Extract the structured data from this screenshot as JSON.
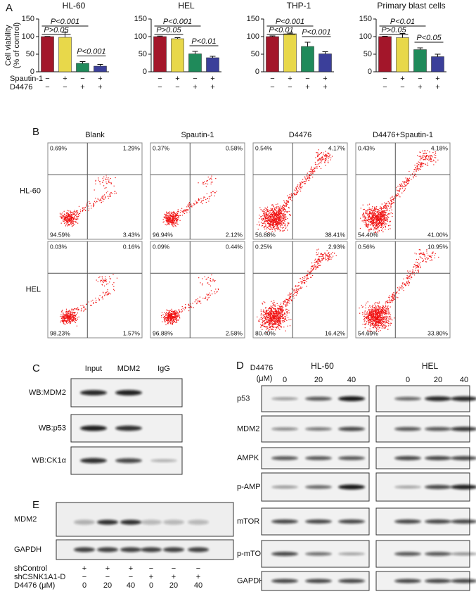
{
  "panel_labels": [
    "A",
    "B",
    "C",
    "D",
    "E"
  ],
  "chart_data": [
    {
      "type": "bar",
      "title": "HL-60",
      "y_label": [
        "Cell viability",
        "(% of control)"
      ],
      "values": [
        100,
        98,
        24,
        16
      ],
      "errors": [
        0.5,
        14,
        5,
        5
      ],
      "colors": [
        "#a3162a",
        "#e8d84a",
        "#1f8a5a",
        "#3b3f9a"
      ],
      "ylim": [
        0,
        150
      ],
      "yticks": [
        0,
        50,
        100,
        150
      ],
      "annotations": [
        "P<0.001",
        "P>0.05",
        "P<0.001"
      ]
    },
    {
      "type": "bar",
      "title": "HEL",
      "values": [
        100,
        94,
        51,
        40
      ],
      "errors": [
        1.5,
        3,
        7,
        4
      ],
      "colors": [
        "#a3162a",
        "#e8d84a",
        "#1f8a5a",
        "#3b3f9a"
      ],
      "ylim": [
        0,
        150
      ],
      "yticks": [
        0,
        50,
        100,
        150
      ],
      "annotations": [
        "P<0.001",
        "P>0.05",
        "P<0.01"
      ]
    },
    {
      "type": "bar",
      "title": "THP-1",
      "values": [
        100,
        108,
        72,
        51
      ],
      "errors": [
        2,
        2,
        12,
        6
      ],
      "colors": [
        "#a3162a",
        "#e8d84a",
        "#1f8a5a",
        "#3b3f9a"
      ],
      "ylim": [
        0,
        150
      ],
      "yticks": [
        0,
        50,
        100,
        150
      ],
      "annotations": [
        "P<0.001",
        "P<0.01",
        "P<0.001"
      ]
    },
    {
      "type": "bar",
      "title": "Primary blast cells",
      "values": [
        100,
        97,
        63,
        43
      ],
      "errors": [
        1,
        12,
        5,
        7
      ],
      "colors": [
        "#a3162a",
        "#e8d84a",
        "#1f8a5a",
        "#3b3f9a"
      ],
      "ylim": [
        0,
        150
      ],
      "yticks": [
        0,
        50,
        100,
        150
      ],
      "annotations": [
        "P<0.01",
        "P>0.05",
        "P<0.05"
      ]
    }
  ],
  "treatments": {
    "labels": [
      "Spautin-1",
      "D4476"
    ],
    "signs": [
      [
        "−",
        "+",
        "−",
        "+"
      ],
      [
        "−",
        "−",
        "+",
        "+"
      ]
    ]
  },
  "flow": {
    "columns": [
      "Blank",
      "Spautin-1",
      "D4476",
      "D4476+Spautin-1"
    ],
    "rows": [
      "HL-60",
      "HEL"
    ],
    "quadrants": [
      [
        [
          "0.69%",
          "1.29%",
          "94.59%",
          "3.43%"
        ],
        [
          "0.37%",
          "0.58%",
          "96.94%",
          "2.12%"
        ],
        [
          "0.54%",
          "4.17%",
          "56.88%",
          "38.41%"
        ],
        [
          "0.43%",
          "4.18%",
          "54.40%",
          "41.00%"
        ]
      ],
      [
        [
          "0.03%",
          "0.16%",
          "98.23%",
          "1.57%"
        ],
        [
          "0.09%",
          "0.44%",
          "96.88%",
          "2.58%"
        ],
        [
          "0.25%",
          "2.93%",
          "80.40%",
          "16.42%"
        ],
        [
          "0.56%",
          "10.95%",
          "54.69%",
          "33.80%"
        ]
      ]
    ]
  },
  "coip": {
    "columns": [
      "Input",
      "MDM2",
      "IgG"
    ],
    "rows": [
      "WB:MDM2",
      "WB:p53",
      "WB:CK1α"
    ]
  },
  "blot_d": {
    "treatment_label": [
      "D4476",
      "(μM)"
    ],
    "groups": [
      "HL-60",
      "HEL"
    ],
    "doses": [
      "0",
      "20",
      "40"
    ],
    "rows": [
      "p53",
      "MDM2",
      "AMPK",
      "p-AMPK",
      "mTOR",
      "p-mTOR",
      "GAPDH"
    ]
  },
  "blot_e": {
    "rows": [
      "MDM2",
      "GAPDH"
    ],
    "conditions": [
      {
        "label": "shControl",
        "values": [
          "+",
          "+",
          "+",
          "−",
          "−",
          "−"
        ]
      },
      {
        "label": "shCSNK1A1-D",
        "values": [
          "−",
          "−",
          "−",
          "+",
          "+",
          "+"
        ]
      },
      {
        "label": "D4476 (μM)",
        "values": [
          "0",
          "20",
          "40",
          "0",
          "20",
          "40"
        ]
      }
    ]
  }
}
